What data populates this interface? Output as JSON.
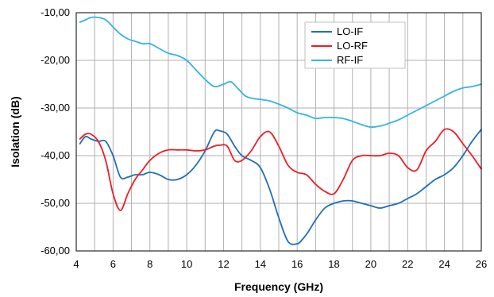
{
  "chart_data": {
    "type": "line",
    "title": "",
    "xlabel": "Frequency (GHz)",
    "ylabel": "Isolation (dB)",
    "xlim": [
      4,
      26
    ],
    "ylim": [
      -60,
      -10
    ],
    "x_ticks": [
      4,
      6,
      8,
      10,
      12,
      14,
      16,
      18,
      20,
      22,
      24,
      26
    ],
    "x_tick_labels": [
      "4",
      "6",
      "8",
      "10",
      "12",
      "14",
      "16",
      "18",
      "20",
      "22",
      "24",
      "26"
    ],
    "y_ticks": [
      -10,
      -20,
      -30,
      -40,
      -50,
      -60
    ],
    "y_tick_labels": [
      "-10,00",
      "-20,00",
      "-30,00",
      "-40,00",
      "-50,00",
      "-60,00"
    ],
    "grid": true,
    "legend_position": "top-right",
    "series": [
      {
        "name": "LO-IF",
        "color": "#1f6fb5",
        "x": [
          4.2,
          4.5,
          4.8,
          5.2,
          5.6,
          6,
          6.4,
          6.8,
          7.2,
          7.6,
          8,
          8.5,
          9,
          9.5,
          10,
          10.5,
          11,
          11.5,
          11.8,
          12.2,
          12.6,
          13,
          13.5,
          14,
          14.5,
          15,
          15.5,
          16,
          16.3,
          16.6,
          17,
          17.5,
          18,
          18.5,
          19,
          19.5,
          20,
          20.5,
          21,
          21.5,
          22,
          22.5,
          23,
          23.5,
          24,
          24.5,
          25,
          25.5,
          26
        ],
        "y": [
          -37.5,
          -36,
          -36.5,
          -37,
          -37,
          -40,
          -44.5,
          -44.5,
          -44,
          -44,
          -43.5,
          -44,
          -45,
          -45,
          -44,
          -42,
          -39,
          -35,
          -34.8,
          -35.5,
          -38,
          -40,
          -41,
          -42.5,
          -47,
          -53,
          -58,
          -58.5,
          -57.5,
          -56,
          -53.5,
          -51,
          -50,
          -49.5,
          -49.5,
          -50,
          -50.5,
          -51,
          -50.5,
          -50,
          -49,
          -48,
          -46.5,
          -45,
          -44,
          -42.5,
          -40,
          -37,
          -34.5
        ]
      },
      {
        "name": "LO-RF",
        "color": "#ee1c25",
        "x": [
          4.2,
          4.5,
          4.8,
          5.2,
          5.6,
          6,
          6.4,
          6.8,
          7.2,
          7.6,
          8,
          8.5,
          9,
          9.5,
          10,
          10.5,
          11,
          11.5,
          11.8,
          12.2,
          12.6,
          13,
          13.5,
          14,
          14.5,
          15,
          15.5,
          16,
          16.5,
          17,
          17.5,
          18,
          18.5,
          19,
          19.5,
          20,
          20.5,
          21,
          21.5,
          22,
          22.5,
          23,
          23.5,
          24,
          24.5,
          25,
          25.5,
          26
        ],
        "y": [
          -36.5,
          -35.5,
          -35.5,
          -37,
          -41,
          -48,
          -51.5,
          -48,
          -45,
          -43,
          -41,
          -39.5,
          -38.8,
          -38.8,
          -38.8,
          -39,
          -38.8,
          -38,
          -37.8,
          -38,
          -41,
          -41,
          -39,
          -36,
          -35,
          -38,
          -42,
          -43.5,
          -44,
          -46,
          -47.5,
          -48,
          -45,
          -41,
          -40,
          -40,
          -40,
          -39.5,
          -40,
          -42.5,
          -43,
          -39,
          -37,
          -34.5,
          -35,
          -37.5,
          -40,
          -42.8
        ]
      },
      {
        "name": "RF-IF",
        "color": "#33b4e4",
        "x": [
          4.2,
          4.5,
          4.8,
          5.2,
          5.6,
          6,
          6.4,
          6.8,
          7.2,
          7.6,
          8,
          8.5,
          9,
          9.5,
          10,
          10.5,
          11,
          11.5,
          12,
          12.4,
          12.8,
          13.2,
          13.6,
          14,
          14.5,
          15,
          15.5,
          16,
          16.5,
          17,
          17.5,
          18,
          18.5,
          19,
          19.5,
          20,
          20.5,
          21,
          21.5,
          22,
          22.5,
          23,
          23.5,
          24,
          24.5,
          25,
          25.5,
          26
        ],
        "y": [
          -12,
          -11.5,
          -11,
          -11,
          -11.5,
          -13,
          -14.5,
          -15.5,
          -16,
          -16.5,
          -16.5,
          -17.5,
          -18.5,
          -19,
          -20,
          -22,
          -24,
          -25.5,
          -25,
          -24.5,
          -26,
          -27.5,
          -28,
          -28.2,
          -28.5,
          -29.2,
          -30,
          -31,
          -31.5,
          -32.2,
          -32,
          -32,
          -32.2,
          -32.8,
          -33.5,
          -34,
          -33.8,
          -33.2,
          -32.5,
          -31.5,
          -30.5,
          -29.5,
          -28.5,
          -27.5,
          -26.5,
          -25.8,
          -25.5,
          -25
        ]
      }
    ]
  }
}
